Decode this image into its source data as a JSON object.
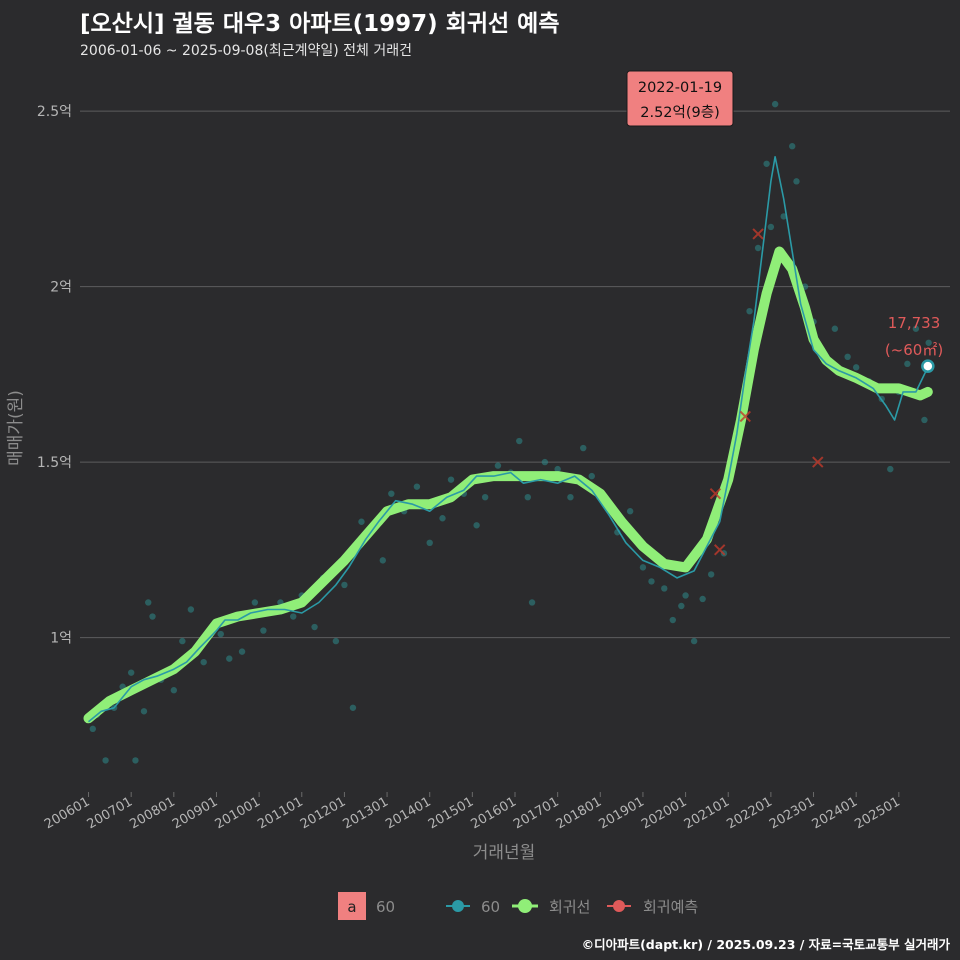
{
  "title": "[오산시] 궐동 대우3 아파트(1997) 회귀선 예측",
  "subtitle": "2006-01-06 ~ 2025-09-08(최근계약일) 전체 거래건",
  "caption": "©디아파트(dapt.kr) / 2025.09.23 / 자료=국토교통부 실거래가",
  "colors": {
    "background": "#2b2b2d",
    "grid": "#5c5c5e",
    "scatter": "#2e8b8b",
    "series_60": "#2b9aa6",
    "regression": "#90ee78",
    "prediction": "#e05a5a",
    "peak_box": "#f08080"
  },
  "chart_data": {
    "type": "line",
    "xlabel": "거래년월",
    "ylabel": "매매가(원)",
    "xlim": [
      2005.8,
      2026.2
    ],
    "ylim": [
      0.56,
      2.64
    ],
    "y_unit": "억",
    "yticks": [
      1.0,
      1.5,
      2.0,
      2.5
    ],
    "ytick_labels": [
      "1억",
      "1.5억",
      "2억",
      "2.5억"
    ],
    "xticks": [
      2006,
      2007,
      2008,
      2009,
      2010,
      2011,
      2012,
      2013,
      2014,
      2015,
      2016,
      2017,
      2018,
      2019,
      2020,
      2021,
      2022,
      2023,
      2024,
      2025
    ],
    "xtick_labels": [
      "200601",
      "200701",
      "200801",
      "200901",
      "201001",
      "201101",
      "201201",
      "201301",
      "201401",
      "201501",
      "201601",
      "201701",
      "201801",
      "201901",
      "202001",
      "202101",
      "202201",
      "202301",
      "202401",
      "202501"
    ],
    "series": [
      {
        "name": "60",
        "type": "line",
        "x": [
          2006.0,
          2006.3,
          2006.6,
          2007.0,
          2007.3,
          2007.6,
          2008.0,
          2008.3,
          2008.6,
          2009.0,
          2009.2,
          2009.5,
          2009.8,
          2010.2,
          2010.6,
          2011.0,
          2011.4,
          2011.8,
          2012.1,
          2012.5,
          2012.8,
          2013.2,
          2013.6,
          2014.0,
          2014.4,
          2014.8,
          2015.1,
          2015.5,
          2015.9,
          2016.2,
          2016.6,
          2017.0,
          2017.4,
          2017.8,
          2018.2,
          2018.6,
          2019.0,
          2019.4,
          2019.8,
          2020.2,
          2020.5,
          2020.8,
          2021.0,
          2021.2,
          2021.4,
          2021.6,
          2021.8,
          2022.0,
          2022.1,
          2022.3,
          2022.5,
          2022.7,
          2023.0,
          2023.3,
          2023.6,
          2024.0,
          2024.4,
          2024.7,
          2024.9,
          2025.1,
          2025.4,
          2025.68
        ],
        "y": [
          0.76,
          0.79,
          0.8,
          0.86,
          0.88,
          0.89,
          0.91,
          0.93,
          0.97,
          1.02,
          1.05,
          1.05,
          1.07,
          1.08,
          1.08,
          1.07,
          1.1,
          1.15,
          1.2,
          1.28,
          1.33,
          1.39,
          1.38,
          1.36,
          1.4,
          1.42,
          1.46,
          1.46,
          1.47,
          1.44,
          1.45,
          1.44,
          1.46,
          1.42,
          1.35,
          1.27,
          1.22,
          1.2,
          1.17,
          1.19,
          1.26,
          1.33,
          1.45,
          1.58,
          1.75,
          1.9,
          2.1,
          2.3,
          2.37,
          2.25,
          2.1,
          1.95,
          1.82,
          1.78,
          1.76,
          1.74,
          1.71,
          1.66,
          1.62,
          1.7,
          1.7,
          1.77
        ]
      },
      {
        "name": "회귀선",
        "type": "line",
        "x": [
          2006.0,
          2006.5,
          2007.0,
          2007.5,
          2008.0,
          2008.5,
          2009.0,
          2009.5,
          2010.0,
          2010.5,
          2011.0,
          2011.5,
          2012.0,
          2012.5,
          2013.0,
          2013.5,
          2014.0,
          2014.5,
          2015.0,
          2015.5,
          2016.0,
          2016.5,
          2017.0,
          2017.5,
          2018.0,
          2018.5,
          2019.0,
          2019.5,
          2020.0,
          2020.5,
          2021.0,
          2021.3,
          2021.6,
          2021.9,
          2022.2,
          2022.5,
          2022.8,
          2023.0,
          2023.3,
          2023.6,
          2024.0,
          2024.5,
          2025.0,
          2025.5,
          2025.68
        ],
        "y": [
          0.77,
          0.82,
          0.85,
          0.88,
          0.91,
          0.96,
          1.04,
          1.06,
          1.07,
          1.08,
          1.1,
          1.16,
          1.22,
          1.29,
          1.36,
          1.38,
          1.38,
          1.4,
          1.45,
          1.46,
          1.46,
          1.46,
          1.46,
          1.45,
          1.41,
          1.33,
          1.26,
          1.21,
          1.2,
          1.28,
          1.45,
          1.62,
          1.82,
          1.98,
          2.1,
          2.05,
          1.94,
          1.85,
          1.79,
          1.76,
          1.74,
          1.71,
          1.71,
          1.69,
          1.7
        ]
      }
    ],
    "scatter_points": [
      [
        2006.1,
        0.74
      ],
      [
        2006.2,
        0.78
      ],
      [
        2006.4,
        0.65
      ],
      [
        2006.6,
        0.8
      ],
      [
        2006.8,
        0.86
      ],
      [
        2007.0,
        0.9
      ],
      [
        2007.1,
        0.65
      ],
      [
        2007.3,
        0.79
      ],
      [
        2007.4,
        1.1
      ],
      [
        2007.5,
        1.06
      ],
      [
        2007.7,
        0.88
      ],
      [
        2008.0,
        0.85
      ],
      [
        2008.2,
        0.99
      ],
      [
        2008.4,
        1.08
      ],
      [
        2008.7,
        0.93
      ],
      [
        2009.1,
        1.01
      ],
      [
        2009.3,
        0.94
      ],
      [
        2009.6,
        0.96
      ],
      [
        2009.9,
        1.1
      ],
      [
        2010.1,
        1.02
      ],
      [
        2010.5,
        1.1
      ],
      [
        2010.8,
        1.06
      ],
      [
        2011.0,
        1.12
      ],
      [
        2011.3,
        1.03
      ],
      [
        2011.5,
        1.17
      ],
      [
        2011.8,
        0.99
      ],
      [
        2012.0,
        1.15
      ],
      [
        2012.2,
        0.8
      ],
      [
        2012.4,
        1.33
      ],
      [
        2012.6,
        1.3
      ],
      [
        2012.9,
        1.22
      ],
      [
        2013.1,
        1.41
      ],
      [
        2013.4,
        1.36
      ],
      [
        2013.7,
        1.43
      ],
      [
        2014.0,
        1.27
      ],
      [
        2014.3,
        1.34
      ],
      [
        2014.5,
        1.45
      ],
      [
        2014.8,
        1.41
      ],
      [
        2015.1,
        1.32
      ],
      [
        2015.3,
        1.4
      ],
      [
        2015.6,
        1.49
      ],
      [
        2015.9,
        1.47
      ],
      [
        2016.1,
        1.56
      ],
      [
        2016.3,
        1.4
      ],
      [
        2016.4,
        1.1
      ],
      [
        2016.7,
        1.5
      ],
      [
        2017.0,
        1.48
      ],
      [
        2017.3,
        1.4
      ],
      [
        2017.6,
        1.54
      ],
      [
        2017.8,
        1.46
      ],
      [
        2018.1,
        1.38
      ],
      [
        2018.4,
        1.3
      ],
      [
        2018.7,
        1.36
      ],
      [
        2019.0,
        1.2
      ],
      [
        2019.2,
        1.16
      ],
      [
        2019.5,
        1.14
      ],
      [
        2019.7,
        1.05
      ],
      [
        2019.9,
        1.09
      ],
      [
        2020.0,
        1.12
      ],
      [
        2020.2,
        0.99
      ],
      [
        2020.4,
        1.11
      ],
      [
        2020.6,
        1.18
      ],
      [
        2020.9,
        1.24
      ],
      [
        2021.1,
        1.49
      ],
      [
        2021.3,
        1.65
      ],
      [
        2021.5,
        1.93
      ],
      [
        2021.7,
        2.11
      ],
      [
        2021.9,
        2.35
      ],
      [
        2022.0,
        2.17
      ],
      [
        2022.1,
        2.52
      ],
      [
        2022.3,
        2.2
      ],
      [
        2022.5,
        2.4
      ],
      [
        2022.6,
        2.3
      ],
      [
        2022.8,
        2.0
      ],
      [
        2023.0,
        1.9
      ],
      [
        2023.2,
        1.82
      ],
      [
        2023.5,
        1.88
      ],
      [
        2023.8,
        1.8
      ],
      [
        2024.0,
        1.77
      ],
      [
        2024.3,
        1.73
      ],
      [
        2024.6,
        1.68
      ],
      [
        2024.8,
        1.48
      ],
      [
        2025.0,
        1.7
      ],
      [
        2025.2,
        1.78
      ],
      [
        2025.4,
        1.88
      ],
      [
        2025.6,
        1.62
      ],
      [
        2025.7,
        1.84
      ]
    ],
    "prediction_points": [
      [
        2020.7,
        1.41
      ],
      [
        2020.8,
        1.25
      ],
      [
        2021.4,
        1.63
      ],
      [
        2021.7,
        2.15
      ],
      [
        2023.1,
        1.5
      ]
    ],
    "last_point": {
      "x": 2025.68,
      "y": 1.7733,
      "label": "17,733",
      "sublabel": "(~60㎡)"
    },
    "peak_annotation": {
      "x": 2022.1,
      "y": 2.52,
      "date": "2022-01-19",
      "price": "2.52억(9층)"
    },
    "legend": {
      "placement": "bottom",
      "key_label": "a",
      "items": [
        "60",
        "60",
        "회귀선",
        "회귀예측"
      ]
    }
  }
}
